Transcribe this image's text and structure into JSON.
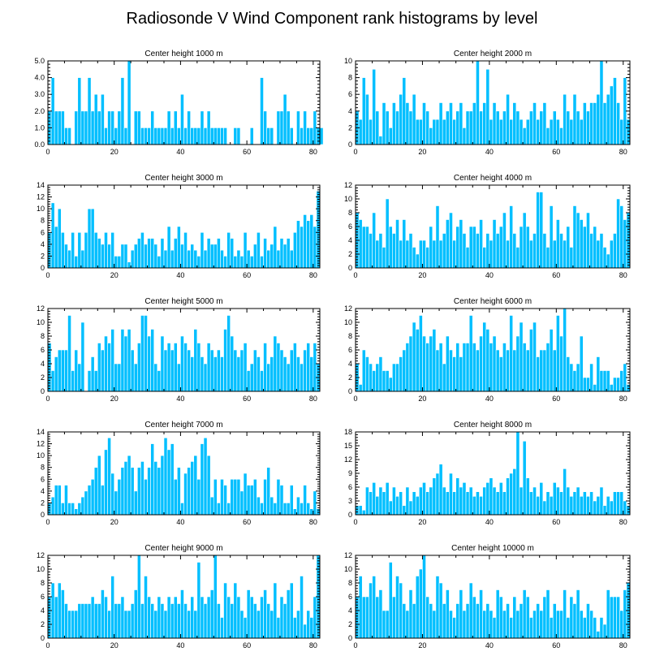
{
  "page_title": "Radiosonde V Wind Component rank histograms by level",
  "colors": {
    "bar": "#00bfff",
    "bar_edge": "#ffffff",
    "axis": "#000000",
    "background": "#ffffff"
  },
  "chart_data": [
    {
      "type": "bar",
      "title": "Center height 1000 m",
      "xlabel": "",
      "ylabel": "",
      "xlim": [
        0,
        82
      ],
      "ylim": [
        0,
        5
      ],
      "xticks": [
        0,
        20,
        40,
        60,
        80
      ],
      "xtick_labels": [
        "0",
        "20",
        "40",
        "60",
        "80"
      ],
      "yticks": [
        0,
        1,
        2,
        3,
        4,
        5
      ],
      "ytick_labels": [
        "0.0",
        "1.0",
        "2.0",
        "3.0",
        "4.0",
        "5.0"
      ],
      "values": [
        2,
        4,
        2,
        2,
        2,
        1,
        1,
        0,
        2,
        4,
        2,
        2,
        4,
        2,
        3,
        2,
        3,
        1,
        2,
        2,
        1,
        2,
        4,
        1,
        5,
        0,
        2,
        2,
        1,
        1,
        1,
        2,
        1,
        1,
        1,
        1,
        2,
        1,
        2,
        1,
        3,
        1,
        2,
        1,
        1,
        1,
        2,
        1,
        2,
        1,
        1,
        1,
        1,
        1,
        0,
        0,
        1,
        1,
        0,
        0,
        0,
        1,
        0,
        0,
        4,
        2,
        1,
        1,
        0,
        2,
        2,
        3,
        2,
        1,
        0,
        2,
        1,
        2,
        1,
        1,
        2,
        1,
        1
      ]
    },
    {
      "type": "bar",
      "title": "Center height 2000 m",
      "xlabel": "",
      "ylabel": "",
      "xlim": [
        0,
        82
      ],
      "ylim": [
        0,
        10
      ],
      "xticks": [
        0,
        20,
        40,
        60,
        80
      ],
      "xtick_labels": [
        "0",
        "20",
        "40",
        "60",
        "80"
      ],
      "yticks": [
        0,
        2,
        4,
        6,
        8,
        10
      ],
      "ytick_labels": [
        "0",
        "2",
        "4",
        "6",
        "8",
        "10"
      ],
      "values": [
        4,
        3,
        8,
        6,
        3,
        9,
        4,
        1,
        5,
        4,
        2,
        5,
        4,
        6,
        8,
        5,
        4,
        6,
        3,
        3,
        5,
        4,
        2,
        3,
        3,
        5,
        3,
        4,
        5,
        3,
        4,
        5,
        2,
        4,
        4,
        5,
        10,
        4,
        5,
        9,
        3,
        5,
        4,
        3,
        4,
        6,
        3,
        5,
        4,
        3,
        2,
        3,
        4,
        5,
        3,
        4,
        5,
        2,
        3,
        4,
        3,
        2,
        6,
        4,
        3,
        6,
        4,
        3,
        5,
        4,
        5,
        5,
        6,
        10,
        5,
        6,
        7,
        8,
        5,
        3,
        8,
        3
      ]
    },
    {
      "type": "bar",
      "title": "Center height 3000 m",
      "xlabel": "",
      "ylabel": "",
      "xlim": [
        0,
        82
      ],
      "ylim": [
        0,
        14
      ],
      "xticks": [
        0,
        20,
        40,
        60,
        80
      ],
      "xtick_labels": [
        "0",
        "20",
        "40",
        "60",
        "80"
      ],
      "yticks": [
        0,
        2,
        4,
        6,
        8,
        10,
        12,
        14
      ],
      "ytick_labels": [
        "0",
        "2",
        "4",
        "6",
        "8",
        "10",
        "12",
        "14"
      ],
      "values": [
        6,
        11,
        7,
        10,
        6,
        4,
        3,
        6,
        2,
        6,
        3,
        6,
        10,
        10,
        6,
        5,
        4,
        6,
        4,
        6,
        2,
        2,
        4,
        4,
        1,
        3,
        4,
        5,
        6,
        4,
        5,
        5,
        4,
        2,
        5,
        3,
        7,
        3,
        5,
        7,
        4,
        6,
        3,
        4,
        3,
        2,
        6,
        3,
        5,
        4,
        4,
        5,
        3,
        2,
        6,
        5,
        2,
        3,
        2,
        6,
        3,
        2,
        4,
        6,
        2,
        5,
        3,
        4,
        7,
        3,
        5,
        4,
        5,
        3,
        6,
        8,
        7,
        9,
        8,
        9,
        7,
        13
      ]
    },
    {
      "type": "bar",
      "title": "Center height 4000 m",
      "xlabel": "",
      "ylabel": "",
      "xlim": [
        0,
        82
      ],
      "ylim": [
        0,
        12
      ],
      "xticks": [
        0,
        20,
        40,
        60,
        80
      ],
      "xtick_labels": [
        "0",
        "20",
        "40",
        "60",
        "80"
      ],
      "yticks": [
        0,
        2,
        4,
        6,
        8,
        10,
        12
      ],
      "ytick_labels": [
        "0",
        "2",
        "4",
        "6",
        "8",
        "10",
        "12"
      ],
      "values": [
        8,
        7,
        6,
        6,
        5,
        8,
        4,
        5,
        3,
        10,
        6,
        5,
        7,
        4,
        7,
        4,
        5,
        3,
        2,
        4,
        4,
        3,
        6,
        4,
        9,
        4,
        5,
        7,
        8,
        4,
        6,
        7,
        5,
        3,
        6,
        6,
        5,
        7,
        3,
        5,
        4,
        7,
        5,
        6,
        8,
        4,
        9,
        5,
        3,
        6,
        8,
        6,
        4,
        5,
        11,
        11,
        5,
        3,
        9,
        4,
        7,
        5,
        4,
        6,
        3,
        9,
        8,
        7,
        6,
        8,
        5,
        6,
        4,
        5,
        3,
        2,
        4,
        5,
        10,
        9,
        7,
        8
      ]
    },
    {
      "type": "bar",
      "title": "Center height 5000 m",
      "xlabel": "",
      "ylabel": "",
      "xlim": [
        0,
        82
      ],
      "ylim": [
        0,
        12
      ],
      "xticks": [
        0,
        20,
        40,
        60,
        80
      ],
      "xtick_labels": [
        "0",
        "20",
        "40",
        "60",
        "80"
      ],
      "yticks": [
        0,
        2,
        4,
        6,
        8,
        10,
        12
      ],
      "ytick_labels": [
        "0",
        "2",
        "4",
        "6",
        "8",
        "10",
        "12"
      ],
      "values": [
        7,
        3,
        5,
        6,
        6,
        6,
        11,
        3,
        6,
        4,
        10,
        0,
        3,
        5,
        3,
        7,
        6,
        8,
        7,
        9,
        4,
        4,
        9,
        8,
        9,
        6,
        4,
        7,
        11,
        11,
        8,
        9,
        4,
        3,
        8,
        6,
        7,
        6,
        7,
        4,
        8,
        7,
        6,
        5,
        9,
        7,
        5,
        4,
        7,
        6,
        5,
        6,
        5,
        9,
        11,
        8,
        6,
        5,
        6,
        7,
        3,
        4,
        6,
        5,
        3,
        7,
        4,
        5,
        8,
        7,
        6,
        5,
        4,
        6,
        7,
        5,
        4,
        6,
        7,
        5,
        7,
        4
      ]
    },
    {
      "type": "bar",
      "title": "Center height 6000 m",
      "xlabel": "",
      "ylabel": "",
      "xlim": [
        0,
        82
      ],
      "ylim": [
        0,
        12
      ],
      "xticks": [
        0,
        20,
        40,
        60,
        80
      ],
      "xtick_labels": [
        "0",
        "20",
        "40",
        "60",
        "80"
      ],
      "yticks": [
        0,
        2,
        4,
        6,
        8,
        10,
        12
      ],
      "ytick_labels": [
        "0",
        "2",
        "4",
        "6",
        "8",
        "10",
        "12"
      ],
      "values": [
        4,
        1,
        6,
        5,
        4,
        3,
        4,
        5,
        3,
        3,
        2,
        4,
        4,
        5,
        6,
        7,
        8,
        10,
        9,
        11,
        8,
        7,
        8,
        9,
        6,
        7,
        4,
        8,
        6,
        5,
        7,
        5,
        7,
        7,
        11,
        7,
        6,
        8,
        10,
        9,
        7,
        8,
        6,
        5,
        7,
        6,
        11,
        6,
        8,
        10,
        7,
        6,
        9,
        10,
        5,
        6,
        6,
        7,
        9,
        6,
        11,
        8,
        12,
        5,
        4,
        3,
        4,
        8,
        2,
        2,
        4,
        1,
        5,
        3,
        3,
        3,
        1,
        2,
        2,
        3,
        4,
        1
      ]
    },
    {
      "type": "bar",
      "title": "Center height 7000 m",
      "xlabel": "",
      "ylabel": "",
      "xlim": [
        0,
        82
      ],
      "ylim": [
        0,
        14
      ],
      "xticks": [
        0,
        20,
        40,
        60,
        80
      ],
      "xtick_labels": [
        "0",
        "20",
        "40",
        "60",
        "80"
      ],
      "yticks": [
        0,
        2,
        4,
        6,
        8,
        10,
        12,
        14
      ],
      "ytick_labels": [
        "0",
        "2",
        "4",
        "6",
        "8",
        "10",
        "12",
        "14"
      ],
      "values": [
        2,
        3,
        5,
        5,
        2,
        5,
        2,
        2,
        1,
        2,
        3,
        4,
        5,
        6,
        8,
        10,
        5,
        11,
        13,
        7,
        4,
        6,
        8,
        9,
        10,
        8,
        4,
        8,
        9,
        6,
        8,
        12,
        9,
        8,
        10,
        13,
        11,
        12,
        6,
        8,
        2,
        7,
        8,
        9,
        10,
        6,
        12,
        13,
        10,
        3,
        6,
        2,
        6,
        5,
        2,
        6,
        6,
        6,
        4,
        7,
        5,
        5,
        6,
        3,
        2,
        6,
        8,
        3,
        2,
        6,
        5,
        2,
        2,
        5,
        1,
        3,
        2,
        5,
        2,
        1,
        4,
        1
      ]
    },
    {
      "type": "bar",
      "title": "Center height 8000 m",
      "xlabel": "",
      "ylabel": "",
      "xlim": [
        0,
        82
      ],
      "ylim": [
        0,
        18
      ],
      "xticks": [
        0,
        20,
        40,
        60,
        80
      ],
      "xtick_labels": [
        "0",
        "20",
        "40",
        "60",
        "80"
      ],
      "yticks": [
        0,
        3,
        6,
        9,
        12,
        15,
        18
      ],
      "ytick_labels": [
        "0",
        "3",
        "6",
        "9",
        "12",
        "15",
        "18"
      ],
      "values": [
        2,
        2,
        1,
        6,
        5,
        7,
        4,
        6,
        5,
        7,
        3,
        6,
        4,
        5,
        2,
        6,
        3,
        5,
        4,
        6,
        7,
        5,
        6,
        8,
        9,
        11,
        6,
        5,
        9,
        5,
        8,
        6,
        7,
        5,
        6,
        4,
        5,
        4,
        6,
        7,
        8,
        6,
        5,
        7,
        5,
        8,
        9,
        10,
        18,
        6,
        16,
        8,
        5,
        6,
        4,
        7,
        3,
        5,
        4,
        7,
        6,
        5,
        10,
        6,
        4,
        5,
        6,
        4,
        5,
        4,
        5,
        3,
        4,
        6,
        2,
        4,
        3,
        5,
        5,
        5,
        3,
        2
      ]
    },
    {
      "type": "bar",
      "title": "Center height 9000 m",
      "xlabel": "",
      "ylabel": "",
      "xlim": [
        0,
        82
      ],
      "ylim": [
        0,
        12
      ],
      "xticks": [
        0,
        20,
        40,
        60,
        80
      ],
      "xtick_labels": [
        "0",
        "20",
        "40",
        "60",
        "80"
      ],
      "yticks": [
        0,
        2,
        4,
        6,
        8,
        10,
        12
      ],
      "ytick_labels": [
        "0",
        "2",
        "4",
        "6",
        "8",
        "10",
        "12"
      ],
      "values": [
        6,
        8,
        6,
        8,
        7,
        5,
        4,
        4,
        4,
        5,
        5,
        5,
        5,
        6,
        5,
        5,
        7,
        6,
        4,
        9,
        5,
        5,
        6,
        4,
        4,
        5,
        7,
        12,
        5,
        9,
        6,
        5,
        4,
        6,
        5,
        4,
        6,
        5,
        6,
        5,
        7,
        5,
        4,
        6,
        4,
        11,
        6,
        5,
        6,
        7,
        12,
        5,
        3,
        8,
        6,
        5,
        8,
        6,
        4,
        3,
        7,
        6,
        5,
        4,
        6,
        7,
        5,
        4,
        8,
        3,
        6,
        5,
        7,
        8,
        3,
        4,
        9,
        2,
        4,
        3,
        6,
        12
      ]
    },
    {
      "type": "bar",
      "title": "Center height 10000 m",
      "xlabel": "",
      "ylabel": "",
      "xlim": [
        0,
        82
      ],
      "ylim": [
        0,
        12
      ],
      "xticks": [
        0,
        20,
        40,
        60,
        80
      ],
      "xtick_labels": [
        "0",
        "20",
        "40",
        "60",
        "80"
      ],
      "yticks": [
        0,
        2,
        4,
        6,
        8,
        10,
        12
      ],
      "ytick_labels": [
        "0",
        "2",
        "4",
        "6",
        "8",
        "10",
        "12"
      ],
      "values": [
        6,
        9,
        6,
        6,
        8,
        9,
        6,
        7,
        4,
        4,
        11,
        6,
        9,
        8,
        5,
        4,
        7,
        5,
        9,
        10,
        12,
        6,
        5,
        4,
        9,
        8,
        5,
        7,
        4,
        3,
        5,
        7,
        4,
        5,
        8,
        6,
        5,
        7,
        4,
        5,
        4,
        3,
        7,
        6,
        4,
        5,
        3,
        6,
        4,
        5,
        7,
        6,
        3,
        4,
        5,
        4,
        6,
        7,
        3,
        5,
        4,
        4,
        7,
        3,
        6,
        5,
        7,
        4,
        3,
        5,
        4,
        3,
        1,
        3,
        2,
        7,
        6,
        6,
        6,
        4,
        7,
        8
      ]
    }
  ]
}
